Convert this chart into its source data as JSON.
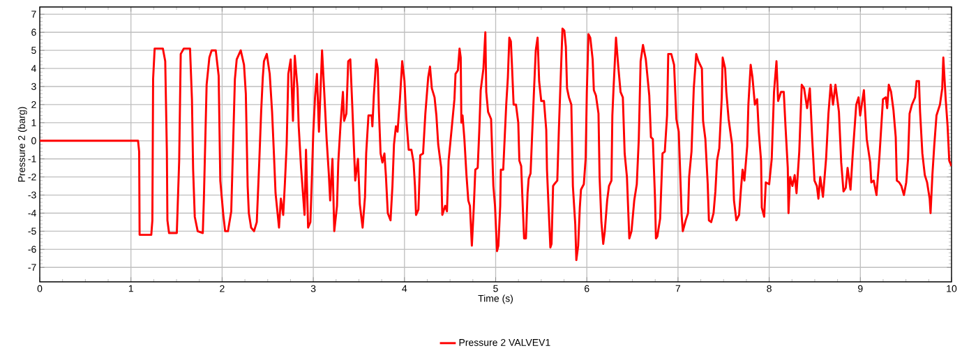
{
  "chart_data": {
    "type": "line",
    "xlabel": "Time (s)",
    "ylabel": "Pressure 2 (barg)",
    "xlim": [
      0,
      10
    ],
    "ylim": [
      -7.8,
      7.4
    ],
    "xticks": [
      0,
      1,
      2,
      3,
      4,
      5,
      6,
      7,
      8,
      9,
      10
    ],
    "yticks": [
      -7,
      -6,
      -5,
      -4,
      -3,
      -2,
      -1,
      0,
      1,
      2,
      3,
      4,
      5,
      6,
      7
    ],
    "grid": true,
    "legend": "bottom",
    "line_style": "solid",
    "series": [
      {
        "name": "Pressure 2 VALVEV1",
        "color": "#ff0000",
        "x": [
          0,
          1.078,
          1.09,
          1.095,
          1.223,
          1.235,
          1.243,
          1.26,
          1.35,
          1.376,
          1.394,
          1.4,
          1.418,
          1.503,
          1.529,
          1.546,
          1.58,
          1.648,
          1.669,
          1.682,
          1.7,
          1.732,
          1.788,
          1.8,
          1.83,
          1.86,
          1.885,
          1.93,
          1.962,
          1.98,
          2.013,
          2.033,
          2.064,
          2.1,
          2.127,
          2.14,
          2.16,
          2.204,
          2.24,
          2.26,
          2.28,
          2.293,
          2.318,
          2.35,
          2.38,
          2.408,
          2.428,
          2.446,
          2.459,
          2.49,
          2.522,
          2.548,
          2.568,
          2.586,
          2.61,
          2.624,
          2.644,
          2.67,
          2.688,
          2.708,
          2.726,
          2.752,
          2.777,
          2.797,
          2.827,
          2.84,
          2.866,
          2.904,
          2.92,
          2.943,
          2.968,
          2.986,
          3.0,
          3.019,
          3.04,
          3.062,
          3.096,
          3.12,
          3.146,
          3.17,
          3.185,
          3.21,
          3.23,
          3.26,
          3.274,
          3.3,
          3.325,
          3.338,
          3.363,
          3.383,
          3.406,
          3.427,
          3.445,
          3.46,
          3.49,
          3.51,
          3.541,
          3.567,
          3.58,
          3.605,
          3.64,
          3.648,
          3.664,
          3.69,
          3.707,
          3.72,
          3.738,
          3.758,
          3.78,
          3.796,
          3.817,
          3.847,
          3.868,
          3.885,
          3.906,
          3.924,
          3.95,
          3.975,
          4.0,
          4.02,
          4.046,
          4.076,
          4.1,
          4.115,
          4.127,
          4.153,
          4.173,
          4.204,
          4.229,
          4.26,
          4.28,
          4.3,
          4.33,
          4.35,
          4.37,
          4.403,
          4.415,
          4.446,
          4.466,
          4.484,
          4.52,
          4.548,
          4.56,
          4.586,
          4.604,
          4.617,
          4.624,
          4.637,
          4.657,
          4.68,
          4.7,
          4.718,
          4.739,
          4.76,
          4.777,
          4.803,
          4.82,
          4.836,
          4.866,
          4.887,
          4.897,
          4.917,
          4.95,
          4.975,
          4.993,
          5.015,
          5.03,
          5.05,
          5.057,
          5.083,
          5.116,
          5.134,
          5.15,
          5.167,
          5.177,
          5.197,
          5.223,
          5.248,
          5.26,
          5.28,
          5.293,
          5.312,
          5.332,
          5.35,
          5.362,
          5.383,
          5.4,
          5.42,
          5.44,
          5.46,
          5.477,
          5.5,
          5.53,
          5.555,
          5.563,
          5.58,
          5.6,
          5.613,
          5.63,
          5.643,
          5.676,
          5.694,
          5.715,
          5.733,
          5.753,
          5.77,
          5.783,
          5.804,
          5.83,
          5.847,
          5.873,
          5.885,
          5.905,
          5.923,
          5.936,
          5.967,
          5.987,
          6.0,
          6.018,
          6.038,
          6.064,
          6.077,
          6.1,
          6.128,
          6.14,
          6.16,
          6.18,
          6.197,
          6.223,
          6.243,
          6.27,
          6.28,
          6.293,
          6.32,
          6.345,
          6.37,
          6.395,
          6.415,
          6.44,
          6.466,
          6.49,
          6.52,
          6.548,
          6.57,
          6.59,
          6.616,
          6.647,
          6.685,
          6.703,
          6.724,
          6.748,
          6.758,
          6.773,
          6.804,
          6.83,
          6.855,
          6.88,
          6.893,
          6.926,
          6.957,
          6.982,
          7.008,
          7.02,
          7.04,
          7.053,
          7.084,
          7.11,
          7.122,
          7.148,
          7.173,
          7.2,
          7.224,
          7.262,
          7.275,
          7.3,
          7.326,
          7.339,
          7.364,
          7.39,
          7.41,
          7.428,
          7.453,
          7.48,
          7.49,
          7.517,
          7.53,
          7.555,
          7.593,
          7.614,
          7.64,
          7.67,
          7.69,
          7.708,
          7.728,
          7.759,
          7.772,
          7.797,
          7.817,
          7.843,
          7.868,
          7.886,
          7.911,
          7.919,
          7.945,
          7.963,
          8.0,
          8.028,
          8.053,
          8.08,
          8.098,
          8.13,
          8.16,
          8.18,
          8.204,
          8.212,
          8.23,
          8.255,
          8.28,
          8.3,
          8.33,
          8.357,
          8.383,
          8.416,
          8.446,
          8.472,
          8.497,
          8.523,
          8.54,
          8.56,
          8.59,
          8.624,
          8.65,
          8.675,
          8.7,
          8.727,
          8.765,
          8.79,
          8.815,
          8.84,
          8.86,
          8.892,
          8.917,
          8.955,
          8.98,
          8.998,
          9.039,
          9.07,
          9.108,
          9.12,
          9.146,
          9.177,
          9.21,
          9.248,
          9.279,
          9.294,
          9.312,
          9.337,
          9.363,
          9.388,
          9.4,
          9.426,
          9.45,
          9.478,
          9.503,
          9.523,
          9.54,
          9.566,
          9.6,
          9.617,
          9.643,
          9.655,
          9.68,
          9.707,
          9.732,
          9.76,
          9.77,
          9.79,
          9.81,
          9.835,
          9.873,
          9.898,
          9.91,
          9.936,
          9.957,
          9.975,
          10.0
        ],
        "values": [
          0,
          0,
          -0.6,
          -5.2,
          -5.2,
          -4.4,
          3.4,
          5.1,
          5.1,
          4.4,
          -0.6,
          -4.4,
          -5.1,
          -5.1,
          -1.1,
          4.8,
          5.1,
          5.1,
          2.3,
          -1.6,
          -4.2,
          -5.0,
          -5.1,
          -3.2,
          3.1,
          4.6,
          5.0,
          5.0,
          3.6,
          -2.2,
          -4.1,
          -5.0,
          -5.0,
          -3.9,
          1.0,
          3.4,
          4.5,
          5.0,
          4.2,
          2.6,
          -2.5,
          -4.0,
          -4.8,
          -5.0,
          -4.5,
          -1.1,
          1.6,
          3.5,
          4.4,
          4.8,
          3.7,
          1.6,
          -0.7,
          -2.9,
          -4.1,
          -4.8,
          -3.2,
          -4.1,
          -2.4,
          -0.2,
          3.7,
          4.5,
          1.1,
          4.7,
          2.9,
          0.8,
          -1.5,
          -4.1,
          -0.5,
          -4.8,
          -4.5,
          -1.8,
          0.5,
          2.4,
          3.7,
          0.5,
          5.0,
          2.7,
          0.1,
          -1.8,
          -3.3,
          -1.0,
          -5.0,
          -3.6,
          -1.2,
          1.0,
          2.7,
          1.1,
          1.5,
          4.4,
          4.5,
          2.0,
          -0.3,
          -2.2,
          -1.0,
          -3.5,
          -4.8,
          -3.1,
          -0.7,
          1.4,
          1.4,
          0.8,
          2.5,
          4.5,
          4.0,
          1.6,
          -0.7,
          -1.2,
          -0.7,
          -1.9,
          -4.0,
          -4.4,
          -2.5,
          -0.2,
          0.8,
          0.5,
          2.3,
          4.4,
          3.3,
          1.2,
          -0.5,
          -0.5,
          -1.2,
          -2.5,
          -4.1,
          -3.8,
          -0.8,
          -0.7,
          1.5,
          3.5,
          4.1,
          2.9,
          2.4,
          1.4,
          -0.2,
          -1.5,
          -4.1,
          -3.6,
          -3.9,
          -1.1,
          0.8,
          2.3,
          3.7,
          3.9,
          5.1,
          4.6,
          1.0,
          1.4,
          0.1,
          -1.9,
          -3.3,
          -3.6,
          -5.8,
          -3.7,
          -1.6,
          -1.5,
          0.5,
          2.8,
          4.0,
          6.0,
          2.7,
          1.6,
          1.2,
          -2.5,
          -3.6,
          -6.1,
          -5.8,
          -3.6,
          -1.6,
          -1.6,
          2.0,
          3.5,
          5.7,
          5.5,
          4.4,
          2.0,
          2.0,
          1.0,
          -1.1,
          -1.4,
          -3.1,
          -5.4,
          -5.4,
          -2.9,
          -2.1,
          -1.8,
          0.3,
          2.7,
          5.0,
          5.7,
          3.3,
          2.2,
          2.2,
          0.6,
          -1.6,
          -3.6,
          -5.9,
          -5.7,
          -2.5,
          -2.4,
          -2.2,
          0.7,
          3.7,
          6.2,
          6.1,
          5.2,
          2.9,
          2.4,
          2.0,
          -2.5,
          -4.6,
          -6.6,
          -5.8,
          -3.7,
          -2.7,
          -2.4,
          -1.0,
          2.7,
          5.9,
          5.7,
          4.5,
          2.8,
          2.5,
          1.5,
          -2.0,
          -4.5,
          -5.7,
          -5.0,
          -3.3,
          -2.5,
          -2.2,
          1.4,
          2.9,
          5.7,
          4.1,
          2.7,
          2.4,
          -0.7,
          -2.0,
          -5.4,
          -5.0,
          -3.3,
          -2.4,
          0.1,
          4.4,
          5.3,
          4.5,
          2.5,
          0.2,
          0.1,
          -3.2,
          -5.4,
          -5.3,
          -4.3,
          -0.7,
          -0.6,
          1.4,
          4.8,
          4.8,
          4.2,
          1.2,
          0.5,
          -1.2,
          -4.1,
          -5.0,
          -4.4,
          -4.0,
          -2.0,
          -0.6,
          2.9,
          4.8,
          4.4,
          4.0,
          1.1,
          0.1,
          -2.4,
          -4.4,
          -4.5,
          -4.0,
          -2.8,
          -1.1,
          -0.4,
          2.4,
          4.6,
          4.0,
          2.7,
          1.2,
          -0.2,
          -3.3,
          -4.4,
          -4.1,
          -2.7,
          -1.6,
          -2.2,
          -0.3,
          2.0,
          4.2,
          3.5,
          2.0,
          2.3,
          0.5,
          -1.1,
          -3.7,
          -4.2,
          -2.3,
          -2.4,
          -1.0,
          2.7,
          4.4,
          2.2,
          2.7,
          2.7,
          0.7,
          -1.5,
          -4.0,
          -2.0,
          -2.5,
          -1.9,
          -2.9,
          -0.6,
          3.1,
          2.9,
          1.8,
          2.9,
          0.1,
          -2.2,
          -2.5,
          -3.2,
          -2.0,
          -3.1,
          -1.0,
          1.5,
          3.1,
          2.0,
          3.1,
          1.6,
          -1.2,
          -2.8,
          -2.6,
          -1.5,
          -2.7,
          -0.7,
          2.0,
          2.4,
          1.4,
          2.8,
          0.1,
          -1.2,
          -2.3,
          -2.2,
          -3.0,
          -0.8,
          2.3,
          2.4,
          1.8,
          3.1,
          2.7,
          1.7,
          0.2,
          -2.2,
          -2.3,
          -2.5,
          -3.0,
          -2.3,
          -1.0,
          1.5,
          2.0,
          2.4,
          3.3,
          3.3,
          1.6,
          -0.7,
          -1.9,
          -2.3,
          -3.2,
          -4.0,
          -1.9,
          -0.3,
          1.4,
          2.0,
          2.9,
          4.6,
          2.3,
          0.8,
          -1.1,
          -1.4
        ]
      }
    ]
  }
}
